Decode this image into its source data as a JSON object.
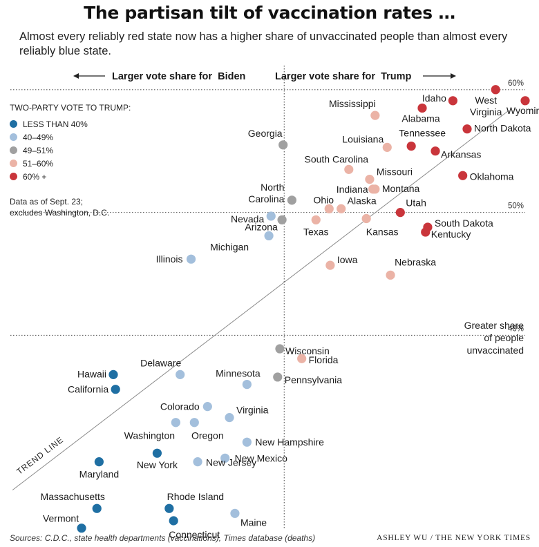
{
  "title": "The partisan tilt of vaccination rates …",
  "subtitle": "Almost every reliably red state now has a higher share of unvaccinated people than almost every reliably blue state.",
  "header": {
    "left": "Larger vote share for  Biden",
    "right": "Larger vote share for  Trump"
  },
  "legend": {
    "title": "TWO-PARTY VOTE TO TRUMP:",
    "items": [
      {
        "label": "LESS THAN 40%",
        "color": "#1f6fa3"
      },
      {
        "label": "40–49%",
        "color": "#a3bfdc"
      },
      {
        "label": "49–51%",
        "color": "#a0a0a0"
      },
      {
        "label": "51–60%",
        "color": "#ebb3a6"
      },
      {
        "label": "60% +",
        "color": "#c9353b"
      }
    ],
    "note_line1": "Data as of Sept. 23;",
    "note_line2": "excludes Washington, D.C."
  },
  "greater_line1": "Greater share",
  "greater_line2": "of people",
  "greater_line3": "unvaccinated",
  "trend_label": "TREND LINE",
  "footer": {
    "sources": "Sources: C.D.C., state health departments (vaccinations), Times database (deaths)",
    "credit": "ASHLEY WU / THE NEW YORK TIMES"
  },
  "chart_data": {
    "type": "scatter",
    "x_quantity": "two-party vote share for Trump (%)",
    "y_quantity": "share of people unvaccinated (%)",
    "xlim": [
      25,
      72
    ],
    "ylim": [
      24,
      61
    ],
    "x_midline": 50,
    "y_ticks": [
      40,
      50,
      60
    ],
    "y_tick_labels": [
      "40%",
      "50%",
      "60%"
    ],
    "gridlines": "dotted horizontal at ticks, dotted vertical at 50%",
    "trend_line": [
      [
        25.2,
        27.4
      ],
      [
        70.5,
        58.3
      ]
    ],
    "series": [
      {
        "color": "#1f6fa3",
        "points": [
          {
            "label": "Hawaii",
            "x": 34.4,
            "y": 36.8
          },
          {
            "label": "California",
            "x": 34.6,
            "y": 35.6
          },
          {
            "label": "New York",
            "x": 38.4,
            "y": 30.4
          },
          {
            "label": "Maryland",
            "x": 33.1,
            "y": 29.7
          },
          {
            "label": "Massachusetts",
            "x": 32.9,
            "y": 25.9
          },
          {
            "label": "Vermont",
            "x": 31.5,
            "y": 24.3
          },
          {
            "label": "Rhode Island",
            "x": 39.5,
            "y": 25.9
          },
          {
            "label": "Connecticut",
            "x": 39.9,
            "y": 24.9
          }
        ]
      },
      {
        "color": "#a3bfdc",
        "points": [
          {
            "label": "Illinois",
            "x": 41.5,
            "y": 46.2
          },
          {
            "label": "Delaware",
            "x": 40.5,
            "y": 36.8
          },
          {
            "label": "Minnesota",
            "x": 46.6,
            "y": 36.0
          },
          {
            "label": "Colorado",
            "x": 43.0,
            "y": 34.2
          },
          {
            "label": "Virginia",
            "x": 45.0,
            "y": 33.3
          },
          {
            "label": "Washington",
            "x": 40.1,
            "y": 32.9
          },
          {
            "label": "Oregon",
            "x": 41.8,
            "y": 32.9
          },
          {
            "label": "New Hampshire",
            "x": 46.6,
            "y": 31.3
          },
          {
            "label": "New Mexico",
            "x": 44.6,
            "y": 30.0
          },
          {
            "label": "New Jersey",
            "x": 42.1,
            "y": 29.7
          },
          {
            "label": "Maine",
            "x": 45.5,
            "y": 25.5
          },
          {
            "label": "Nevada",
            "x": 48.8,
            "y": 49.7
          },
          {
            "label": "Michigan",
            "x": 48.6,
            "y": 48.1
          }
        ]
      },
      {
        "color": "#a0a0a0",
        "points": [
          {
            "label": "Georgia",
            "x": 49.9,
            "y": 55.5
          },
          {
            "label": "North Carolina",
            "x": 50.7,
            "y": 51.0
          },
          {
            "label": "Arizona",
            "x": 49.8,
            "y": 49.4
          },
          {
            "label": "Wisconsin",
            "x": 49.6,
            "y": 38.9
          },
          {
            "label": "Pennsylvania",
            "x": 49.4,
            "y": 36.6
          }
        ]
      },
      {
        "color": "#ebb3a6",
        "points": [
          {
            "label": "Mississippi",
            "x": 58.3,
            "y": 57.9
          },
          {
            "label": "Louisiana",
            "x": 59.4,
            "y": 55.3
          },
          {
            "label": "South Carolina",
            "x": 55.9,
            "y": 53.5
          },
          {
            "label": "Missouri",
            "x": 57.8,
            "y": 52.7
          },
          {
            "label": "Indiana",
            "x": 58.1,
            "y": 51.9
          },
          {
            "label": "Montana",
            "x": 58.3,
            "y": 51.9
          },
          {
            "label": "Ohio",
            "x": 54.1,
            "y": 50.3
          },
          {
            "label": "Alaska",
            "x": 55.2,
            "y": 50.3
          },
          {
            "label": "Texas",
            "x": 52.9,
            "y": 49.4
          },
          {
            "label": "Kansas",
            "x": 57.5,
            "y": 49.5
          },
          {
            "label": "Iowa",
            "x": 54.2,
            "y": 45.7
          },
          {
            "label": "Nebraska",
            "x": 59.7,
            "y": 44.9
          },
          {
            "label": "Florida",
            "x": 51.6,
            "y": 38.1
          }
        ]
      },
      {
        "color": "#c9353b",
        "points": [
          {
            "label": "Idaho",
            "x": 65.4,
            "y": 59.1
          },
          {
            "label": "West Virginia",
            "x": 69.3,
            "y": 60.0
          },
          {
            "label": "Wyoming",
            "x": 72.0,
            "y": 59.1
          },
          {
            "label": "Alabama",
            "x": 62.6,
            "y": 58.5
          },
          {
            "label": "Tennessee",
            "x": 61.6,
            "y": 55.4
          },
          {
            "label": "North Dakota",
            "x": 66.7,
            "y": 56.8
          },
          {
            "label": "Arkansas",
            "x": 63.8,
            "y": 55.0
          },
          {
            "label": "Oklahoma",
            "x": 66.3,
            "y": 53.0
          },
          {
            "label": "Utah",
            "x": 60.6,
            "y": 50.0
          },
          {
            "label": "South Dakota",
            "x": 63.1,
            "y": 48.8
          },
          {
            "label": "Kentucky",
            "x": 62.9,
            "y": 48.4
          }
        ]
      }
    ]
  }
}
